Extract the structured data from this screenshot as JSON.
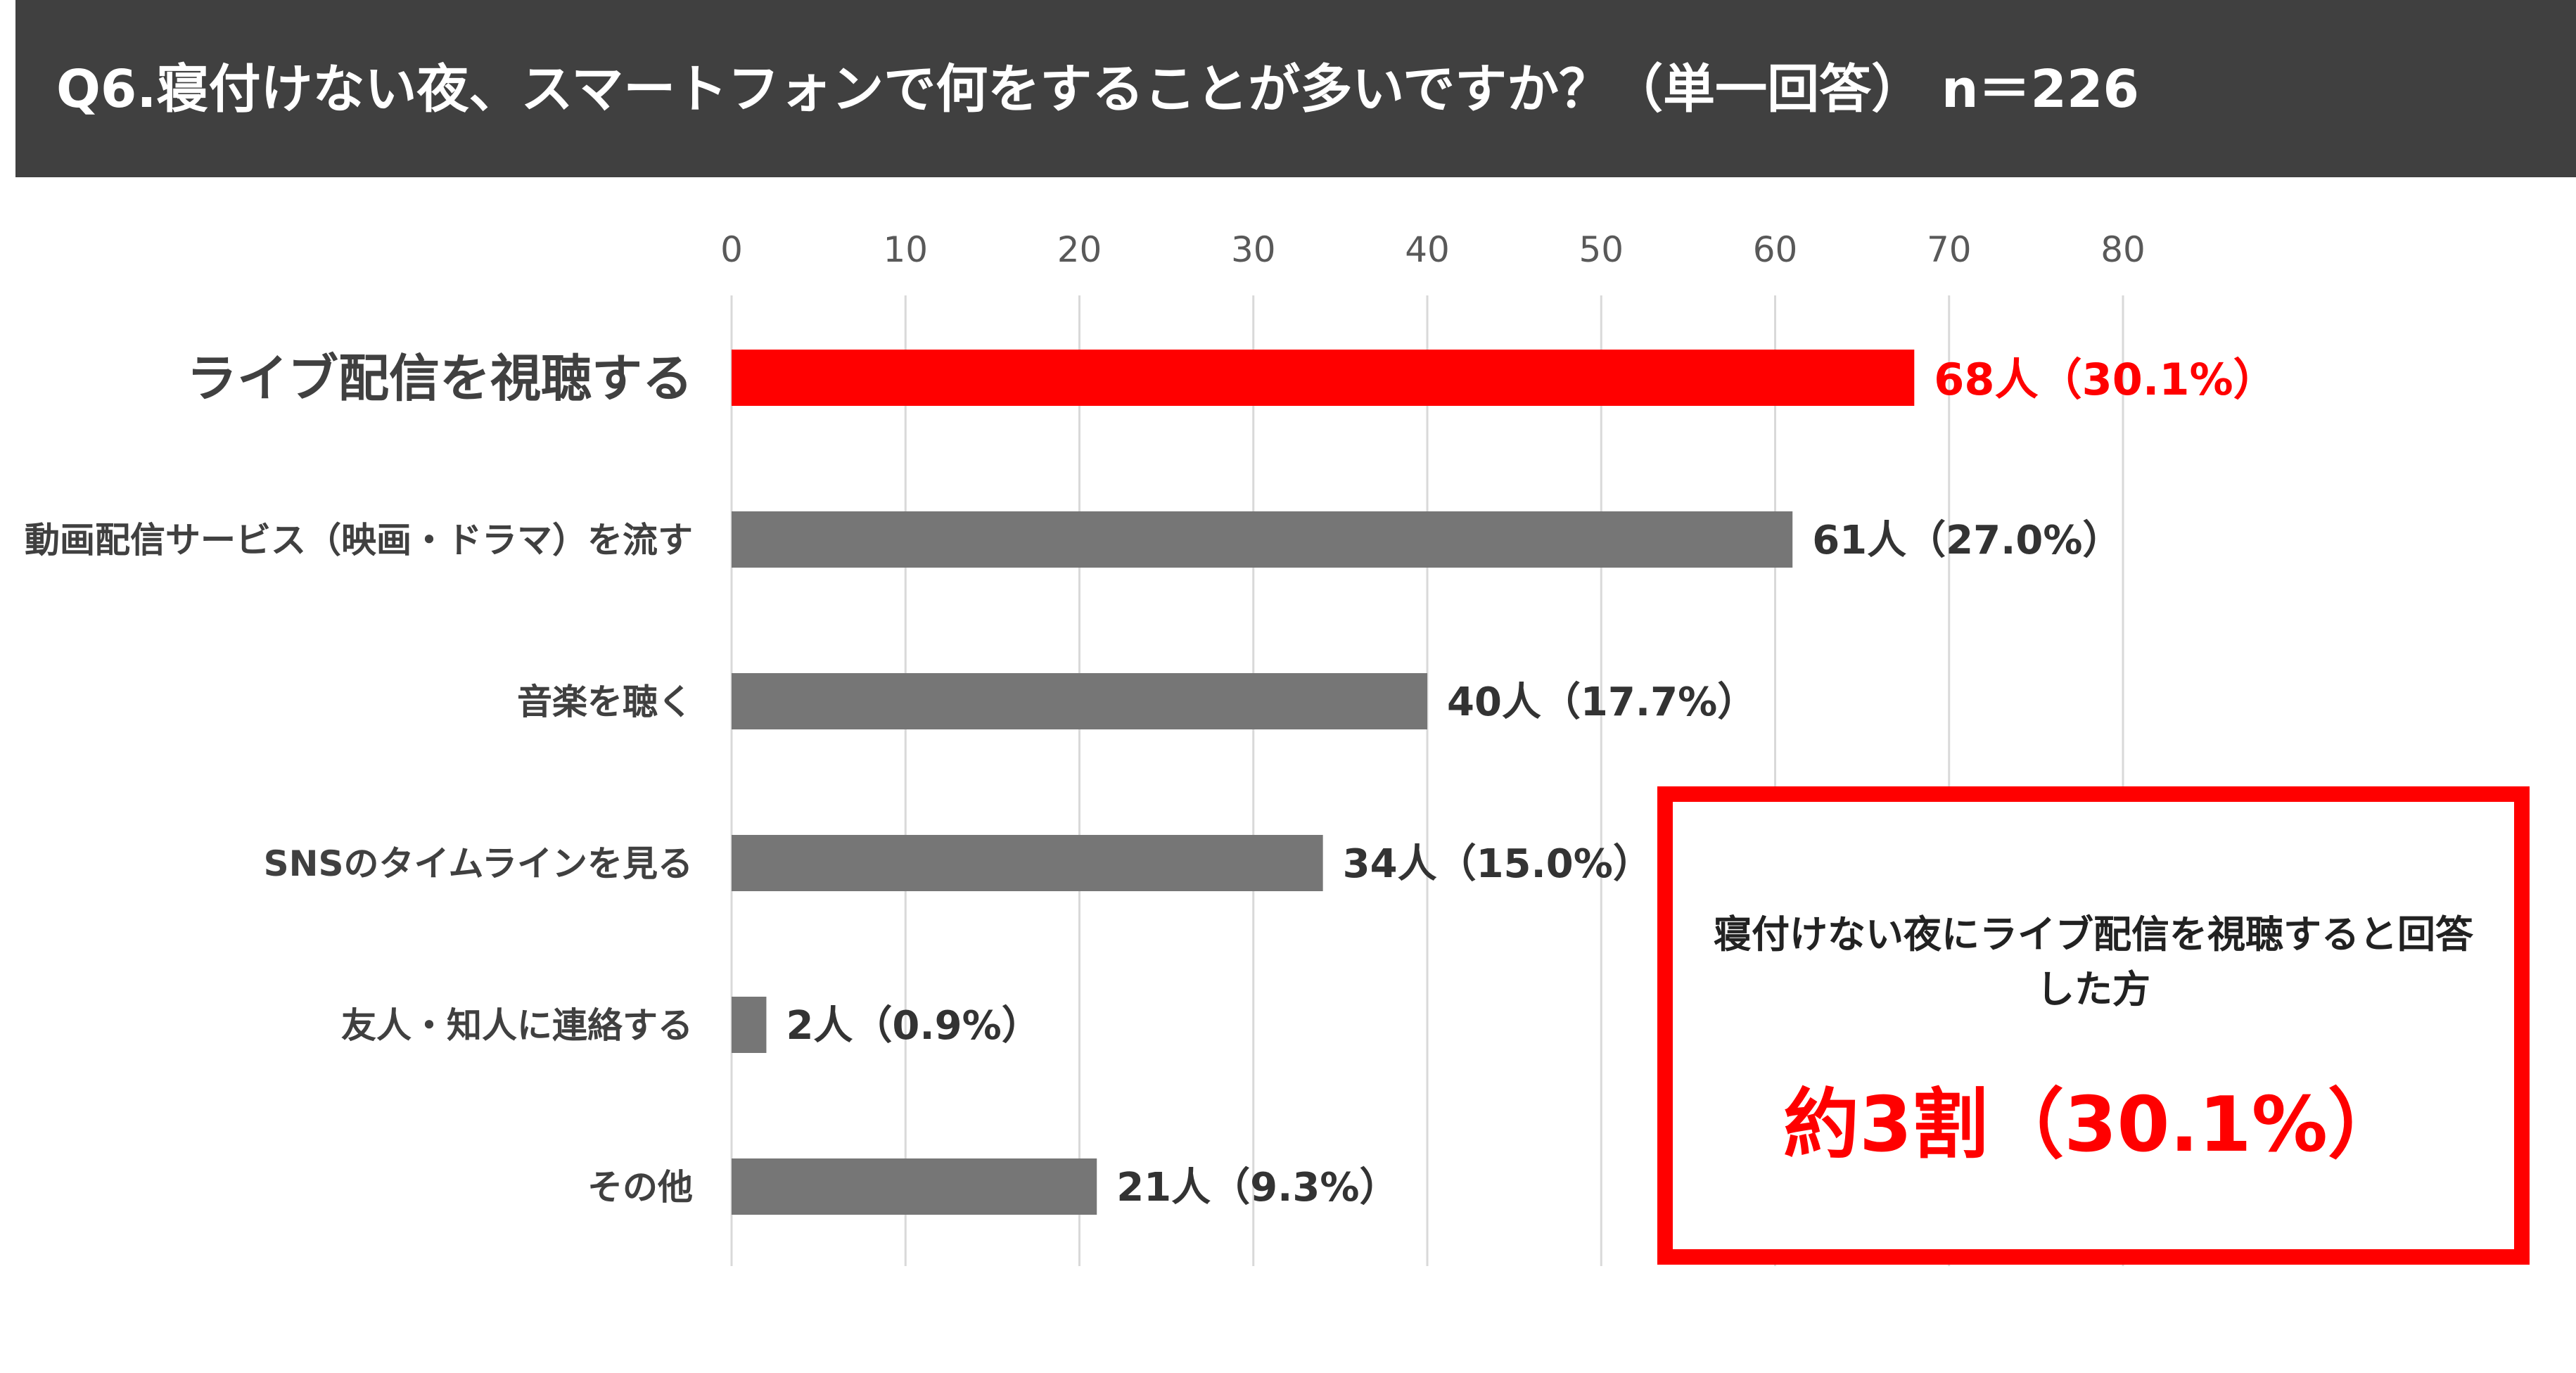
{
  "header": {
    "title": "Q6.寝付けない夜、スマートフォンで何をすることが多いですか？（単一回答） n＝226"
  },
  "callout": {
    "text": "寝付けない夜にライブ配信を視聴すると回答した方",
    "value": "約3割（30.1%）"
  },
  "colors": {
    "highlight": "#ff0000",
    "bar": "#767676",
    "header_bg": "#404040",
    "label_dark": "#404040"
  },
  "chart_data": {
    "type": "bar",
    "orientation": "horizontal",
    "categories": [
      "ライブ配信を視聴する",
      "動画配信サービス（映画・ドラマ）を流す",
      "音楽を聴く",
      "SNSのタイムラインを見る",
      "友人・知人に連絡する",
      "その他"
    ],
    "values": [
      68,
      61,
      40,
      34,
      2,
      21
    ],
    "data_labels": [
      "68人（30.1%）",
      "61人（27.0%）",
      "40人（17.7%）",
      "34人（15.0%）",
      "2人（0.9%）",
      "21人（9.3%）"
    ],
    "highlight_index": 0,
    "xlim": [
      0,
      80
    ],
    "xticks": [
      0,
      10,
      20,
      30,
      40,
      50,
      60,
      70,
      80
    ],
    "axis_position": "top",
    "grid": true,
    "legend": false
  }
}
